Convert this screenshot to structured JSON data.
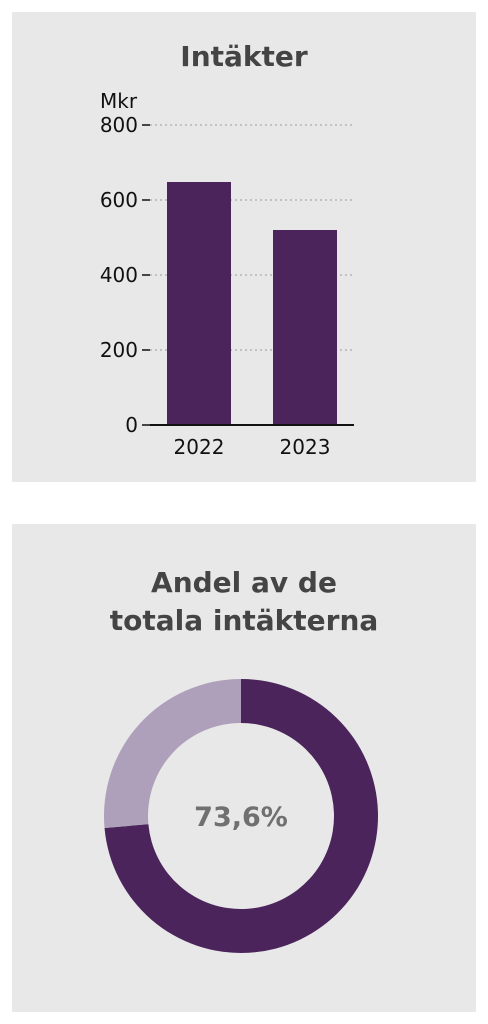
{
  "colors": {
    "panel_bg": "#e8e8e8",
    "bar": "#4a245b",
    "donut_main": "#4a245b",
    "donut_rest": "#ae9fbb",
    "gridline": "#9a9a9a"
  },
  "chart_data": [
    {
      "type": "bar",
      "title": "Intäkter",
      "ylabel": "Mkr",
      "categories": [
        "2022",
        "2023"
      ],
      "values": [
        648,
        520
      ],
      "ylim": [
        0,
        800
      ],
      "yticks": [
        "0",
        "200",
        "400",
        "600",
        "800"
      ],
      "grid": true
    },
    {
      "type": "pie",
      "title_lines": [
        "Andel av de",
        "totala intäkterna"
      ],
      "values": [
        73.6,
        26.4
      ],
      "center_label": "73,6%"
    }
  ]
}
